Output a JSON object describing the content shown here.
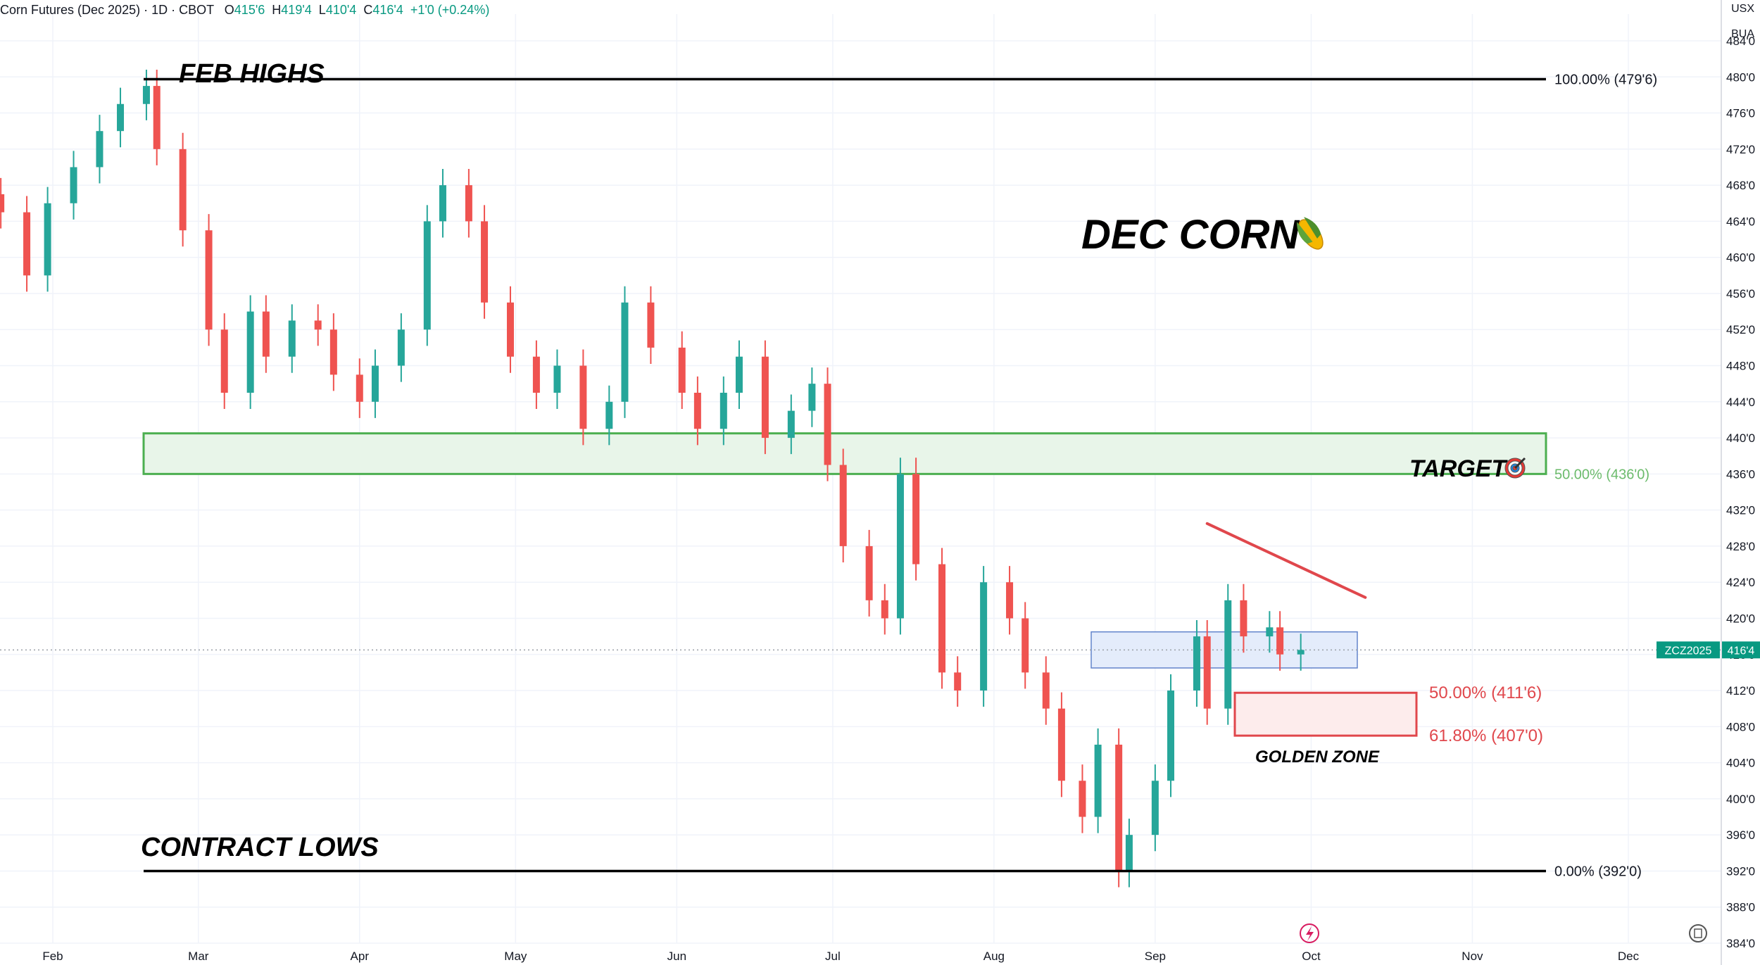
{
  "header": {
    "symbol_title": "Corn Futures (Dec 2025) · 1D · CBOT",
    "open_label": "O",
    "open": "415'6",
    "high_label": "H",
    "high": "419'4",
    "low_label": "L",
    "low": "410'4",
    "close_label": "C",
    "close": "416'4",
    "change": "+1'0 (+0.24%)"
  },
  "axis_units": {
    "currency": "USX",
    "unit": "BUA"
  },
  "price_tag": {
    "symbol": "ZCZ2025",
    "price": "416'4",
    "value": 416.5
  },
  "colors": {
    "up": "#26a69a",
    "down": "#ef5350",
    "target": "#4caf50",
    "zone": "#e0474c",
    "support": "#5b7ec9",
    "accent": "#089981"
  },
  "icons": {
    "corn": "corn-icon",
    "target": "dartboard-target-icon",
    "lightning": "lightning-icon",
    "settings": "reset-scale-icon"
  },
  "chart_data": {
    "type": "candlestick",
    "title": "DEC CORN",
    "y_ticks": [
      "384'0",
      "388'0",
      "392'0",
      "396'0",
      "400'0",
      "404'0",
      "408'0",
      "412'0",
      "416'0",
      "420'0",
      "424'0",
      "428'0",
      "432'0",
      "436'0",
      "440'0",
      "444'0",
      "448'0",
      "452'0",
      "456'0",
      "460'0",
      "464'0",
      "468'0",
      "472'0",
      "476'0",
      "480'0",
      "484'0"
    ],
    "y_tick_values": [
      384,
      388,
      392,
      396,
      400,
      404,
      408,
      412,
      416,
      420,
      424,
      428,
      432,
      436,
      440,
      444,
      448,
      452,
      456,
      460,
      464,
      468,
      472,
      476,
      480,
      484
    ],
    "x_ticks": [
      {
        "label": "Feb",
        "date": "2025-02-01"
      },
      {
        "label": "Mar",
        "date": "2025-03-01"
      },
      {
        "label": "Apr",
        "date": "2025-04-01"
      },
      {
        "label": "May",
        "date": "2025-05-01"
      },
      {
        "label": "Jun",
        "date": "2025-06-01"
      },
      {
        "label": "Jul",
        "date": "2025-07-01"
      },
      {
        "label": "Aug",
        "date": "2025-08-01"
      },
      {
        "label": "Sep",
        "date": "2025-09-01"
      },
      {
        "label": "Oct",
        "date": "2025-10-01"
      },
      {
        "label": "Nov",
        "date": "2025-11-01"
      },
      {
        "label": "Dec",
        "date": "2025-12-01"
      }
    ],
    "ylim": [
      384,
      486
    ],
    "xlim": [
      "2025-01-22",
      "2025-12-20"
    ],
    "grid": true,
    "candles": [
      {
        "date": "2025-01-22",
        "close": 465
      },
      {
        "date": "2025-01-27",
        "close": 458
      },
      {
        "date": "2025-01-31",
        "close": 466
      },
      {
        "date": "2025-02-05",
        "close": 470
      },
      {
        "date": "2025-02-10",
        "close": 474
      },
      {
        "date": "2025-02-14",
        "close": 477
      },
      {
        "date": "2025-02-19",
        "close": 479
      },
      {
        "date": "2025-02-21",
        "close": 472
      },
      {
        "date": "2025-02-26",
        "close": 463
      },
      {
        "date": "2025-03-03",
        "close": 452
      },
      {
        "date": "2025-03-06",
        "close": 445
      },
      {
        "date": "2025-03-11",
        "close": 454
      },
      {
        "date": "2025-03-14",
        "close": 449
      },
      {
        "date": "2025-03-19",
        "close": 453
      },
      {
        "date": "2025-03-24",
        "close": 452
      },
      {
        "date": "2025-03-27",
        "close": 447
      },
      {
        "date": "2025-04-01",
        "close": 444
      },
      {
        "date": "2025-04-04",
        "close": 448
      },
      {
        "date": "2025-04-09",
        "close": 452
      },
      {
        "date": "2025-04-14",
        "close": 464
      },
      {
        "date": "2025-04-17",
        "close": 468
      },
      {
        "date": "2025-04-22",
        "close": 464
      },
      {
        "date": "2025-04-25",
        "close": 455
      },
      {
        "date": "2025-04-30",
        "close": 449
      },
      {
        "date": "2025-05-05",
        "close": 445
      },
      {
        "date": "2025-05-09",
        "close": 448
      },
      {
        "date": "2025-05-14",
        "close": 441
      },
      {
        "date": "2025-05-19",
        "close": 444
      },
      {
        "date": "2025-05-22",
        "close": 455
      },
      {
        "date": "2025-05-27",
        "close": 450
      },
      {
        "date": "2025-06-02",
        "close": 445
      },
      {
        "date": "2025-06-05",
        "close": 441
      },
      {
        "date": "2025-06-10",
        "close": 445
      },
      {
        "date": "2025-06-13",
        "close": 449
      },
      {
        "date": "2025-06-18",
        "close": 440
      },
      {
        "date": "2025-06-23",
        "close": 443
      },
      {
        "date": "2025-06-27",
        "close": 446
      },
      {
        "date": "2025-06-30",
        "close": 437
      },
      {
        "date": "2025-07-03",
        "close": 428
      },
      {
        "date": "2025-07-08",
        "close": 422
      },
      {
        "date": "2025-07-11",
        "close": 420
      },
      {
        "date": "2025-07-14",
        "close": 436
      },
      {
        "date": "2025-07-17",
        "close": 426
      },
      {
        "date": "2025-07-22",
        "close": 414
      },
      {
        "date": "2025-07-25",
        "close": 412
      },
      {
        "date": "2025-07-30",
        "close": 424
      },
      {
        "date": "2025-08-04",
        "close": 420
      },
      {
        "date": "2025-08-07",
        "close": 414
      },
      {
        "date": "2025-08-11",
        "close": 410
      },
      {
        "date": "2025-08-14",
        "close": 402
      },
      {
        "date": "2025-08-18",
        "close": 398
      },
      {
        "date": "2025-08-21",
        "close": 406
      },
      {
        "date": "2025-08-25",
        "close": 392
      },
      {
        "date": "2025-08-27",
        "close": 396
      },
      {
        "date": "2025-09-01",
        "close": 402
      },
      {
        "date": "2025-09-04",
        "close": 412
      },
      {
        "date": "2025-09-09",
        "close": 418
      },
      {
        "date": "2025-09-11",
        "close": 410
      },
      {
        "date": "2025-09-15",
        "close": 422
      },
      {
        "date": "2025-09-18",
        "close": 418
      },
      {
        "date": "2025-09-23",
        "close": 419
      },
      {
        "date": "2025-09-25",
        "close": 416
      },
      {
        "date": "2025-09-29",
        "close": 416.5
      }
    ]
  },
  "annotations": {
    "feb_highs": {
      "label": "FEB HIGHS",
      "level_text": "100.00% (479'6)",
      "value": 479.75
    },
    "contract_lows": {
      "label": "CONTRACT LOWS",
      "level_text": "0.00% (392'0)",
      "value": 392
    },
    "target": {
      "label": "TARGET",
      "level_text": "50.00% (436'0)",
      "from": 436,
      "to": 440.5
    },
    "golden_zone": {
      "label": "GOLDEN ZONE",
      "upper_text": "50.00% (411'6)",
      "lower_text": "61.80% (407'0)",
      "upper": 411.75,
      "lower": 407
    },
    "support_box": {
      "from": 414.5,
      "to": 418.5
    },
    "downtrend": {
      "from": {
        "date": "2025-09-11",
        "value": 430.5
      },
      "to": {
        "date": "2025-10-06",
        "value": 422
      }
    }
  }
}
